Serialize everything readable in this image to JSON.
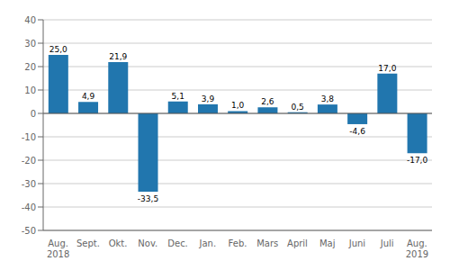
{
  "chart_data": {
    "type": "bar",
    "categories": [
      "Aug.\n2018",
      "Sept.",
      "Okt.",
      "Nov.",
      "Dec.",
      "Jan.",
      "Feb.",
      "Mars",
      "April",
      "Maj",
      "Juni",
      "Juli",
      "Aug.\n2019"
    ],
    "values": [
      25.0,
      4.9,
      21.9,
      -33.5,
      5.1,
      3.9,
      1.0,
      2.6,
      0.5,
      3.8,
      -4.6,
      17.0,
      -17.0
    ],
    "value_labels": [
      "25,0",
      "4,9",
      "21,9",
      "-33,5",
      "5,1",
      "3,9",
      "1,0",
      "2,6",
      "0,5",
      "3,8",
      "-4,6",
      "17,0",
      "-17,0"
    ],
    "data_labels": true,
    "color": "#2176ae",
    "ylim": [
      -50,
      40
    ],
    "yticks": [
      -50,
      -40,
      -30,
      -20,
      -10,
      0,
      10,
      20,
      30,
      40
    ],
    "grid": true
  }
}
